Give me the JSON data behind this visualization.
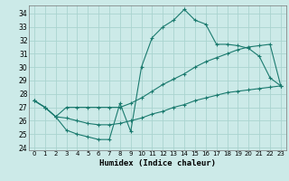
{
  "xlabel": "Humidex (Indice chaleur)",
  "bg_color": "#cceae8",
  "grid_color": "#aad4d0",
  "line_color": "#1a7a6e",
  "xlim": [
    -0.5,
    23.5
  ],
  "ylim": [
    23.8,
    34.6
  ],
  "yticks": [
    24,
    25,
    26,
    27,
    28,
    29,
    30,
    31,
    32,
    33,
    34
  ],
  "xticks": [
    0,
    1,
    2,
    3,
    4,
    5,
    6,
    7,
    8,
    9,
    10,
    11,
    12,
    13,
    14,
    15,
    16,
    17,
    18,
    19,
    20,
    21,
    22,
    23
  ],
  "series": [
    [
      27.5,
      27.0,
      26.3,
      25.3,
      25.0,
      24.8,
      24.6,
      24.6,
      27.3,
      25.2,
      30.0,
      32.2,
      33.0,
      33.5,
      34.3,
      33.5,
      33.2,
      31.7,
      31.7,
      31.6,
      31.4,
      30.8,
      29.2,
      28.6
    ],
    [
      27.5,
      27.0,
      26.3,
      27.0,
      27.0,
      27.0,
      27.0,
      27.0,
      27.0,
      27.3,
      27.7,
      28.2,
      28.7,
      29.1,
      29.5,
      30.0,
      30.4,
      30.7,
      31.0,
      31.3,
      31.5,
      31.6,
      31.7,
      28.6
    ],
    [
      27.5,
      27.0,
      26.3,
      26.2,
      26.0,
      25.8,
      25.7,
      25.7,
      25.8,
      26.0,
      26.2,
      26.5,
      26.7,
      27.0,
      27.2,
      27.5,
      27.7,
      27.9,
      28.1,
      28.2,
      28.3,
      28.4,
      28.5,
      28.6
    ]
  ]
}
